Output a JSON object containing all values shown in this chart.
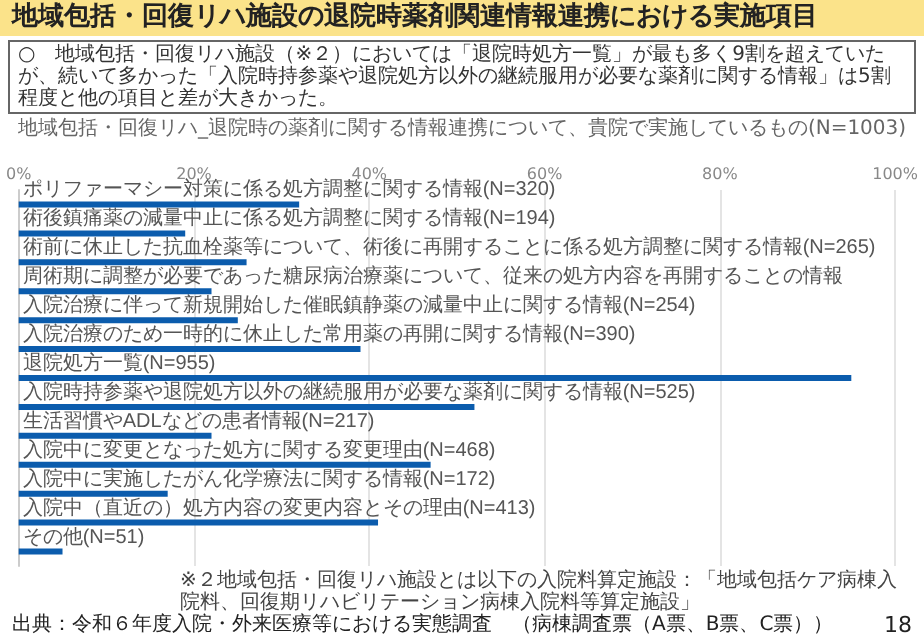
{
  "chart_data": {
    "type": "bar",
    "orientation": "horizontal",
    "title": "地域包括・回復リハ施設の退院時薬剤関連情報連携における実施項目",
    "subtitle": "○　地域包括・回復リハ施設（※２）においては「退院時処方一覧」が最も多く9割を超えていたが、続いて多かった「入院時持参薬や退院処方以外の継続服用が必要な薬剤に関する情報」は5割程度と他の項目と差が大きかった。",
    "categories": [
      "ポリファーマシー対策に係る処方調整に関する情報(N=320)",
      "術後鎮痛薬の減量中止に係る処方調整に関する情報(N=194)",
      "術前に休止した抗血栓薬等について、術後に再開することに係る処方調整に関する情報(N=265)",
      "周術期に調整が必要であった糖尿病治療薬について、従来の処方内容を再開することの情報",
      "入院治療に伴って新規開始した催眠鎮静薬の減量中止に関する情報(N=254)",
      "入院治療のため一時的に休止した常用薬の再開に関する情報(N=390)",
      "退院処方一覧(N=955)",
      "入院時持参薬や退院処方以外の継続服用が必要な薬剤に関する情報(N=525)",
      "生活習慣やADLなどの患者情報(N=217)",
      "入院中に変更となった処方に関する変更理由(N=468)",
      "入院中に実施したがん化学療法に関する情報(N=172)",
      "入院中（直近の）処方内容の変更内容とその理由(N=413)",
      "その他(N=51)"
    ],
    "values": [
      32,
      19,
      26,
      22,
      25,
      39,
      95,
      52,
      22,
      47,
      17,
      41,
      5
    ],
    "color": "#0b5cad",
    "xlim": [
      0,
      100
    ],
    "xticks": [
      {
        "value": 0,
        "label": "0%"
      },
      {
        "value": 20,
        "label": "20%"
      },
      {
        "value": 40,
        "label": "40%"
      },
      {
        "value": 60,
        "label": "60%"
      },
      {
        "value": 80,
        "label": "80%"
      },
      {
        "value": 100,
        "label": "100%"
      }
    ],
    "grid": "x",
    "annotations": [
      "地域包括・回復リハ_退院時の薬剤に関する情報連携について、貴院で実施しているもの(N=1003)",
      "※２地域包括・回復リハ施設とは以下の入院料算定施設：「地域包括ケア病棟入院料、回復期リハビリテーション病棟入院料等算定施設」",
      "出典：令和６年度入院・外来医療等における実態調査　（病棟調査票（A票、B票、C票））",
      "18"
    ]
  }
}
